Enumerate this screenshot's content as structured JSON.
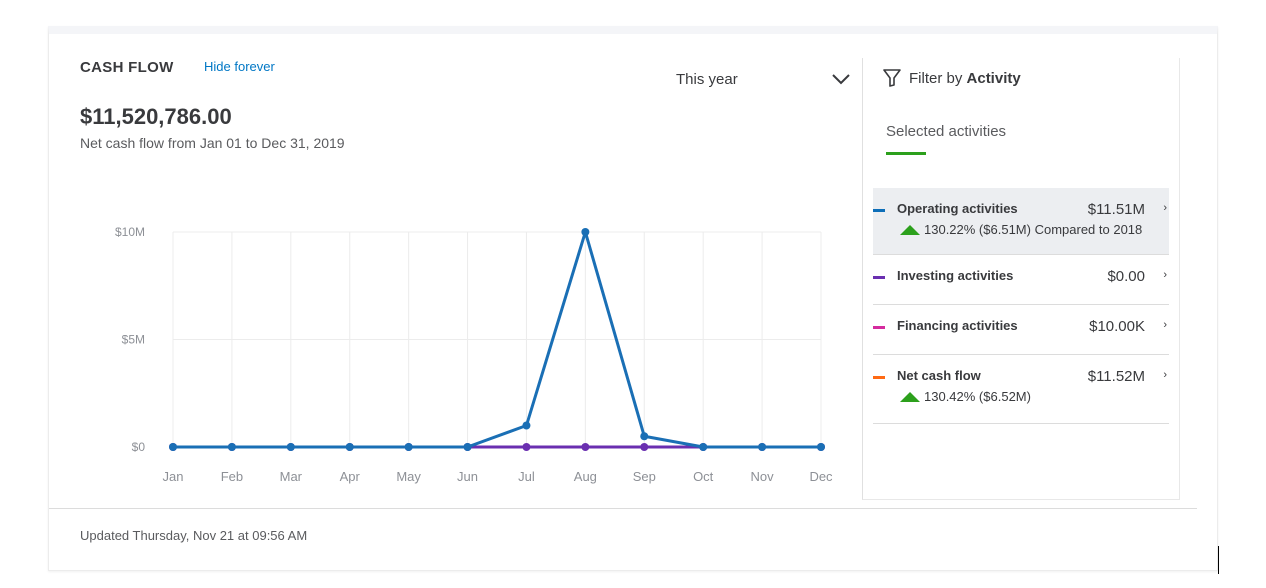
{
  "card": {
    "title": "CASH FLOW",
    "hide_link": "Hide forever",
    "period": "This year",
    "total": "$11,520,786.00",
    "subtitle": "Net cash flow from Jan 01 to Dec 31, 2019",
    "updated": "Updated Thursday, Nov 21 at 09:56 AM"
  },
  "panel": {
    "filter_prefix": "Filter by",
    "filter_bold": "Activity",
    "selected_label": "Selected activities",
    "rows": [
      {
        "name": "Operating activities",
        "value": "$11.51M",
        "change": "130.22% ($6.51M)",
        "compare": "Compared to 2018",
        "color": "#0d6eb8"
      },
      {
        "name": "Investing activities",
        "value": "$0.00",
        "color": "#6a2fb0"
      },
      {
        "name": "Financing activities",
        "value": "$10.00K",
        "color": "#d52b9e"
      },
      {
        "name": "Net cash flow",
        "value": "$11.52M",
        "change": "130.42% ($6.52M)",
        "color": "#ff6a14"
      }
    ]
  },
  "chart_data": {
    "type": "line",
    "categories": [
      "Jan",
      "Feb",
      "Mar",
      "Apr",
      "May",
      "Jun",
      "Jul",
      "Aug",
      "Sep",
      "Oct",
      "Nov",
      "Dec"
    ],
    "y_ticks": [
      "$0",
      "$5M",
      "$10M"
    ],
    "ylim": [
      0,
      10000000
    ],
    "grid": true,
    "series": [
      {
        "color": "#6a2fb0",
        "values": [
          0,
          0,
          0,
          0,
          0,
          0,
          0,
          0,
          0,
          0,
          0,
          0
        ]
      },
      {
        "color": "#1a6fb5",
        "values": [
          0,
          0,
          0,
          0,
          0,
          0,
          1000000,
          10000000,
          500000,
          0,
          0,
          0
        ]
      }
    ]
  }
}
